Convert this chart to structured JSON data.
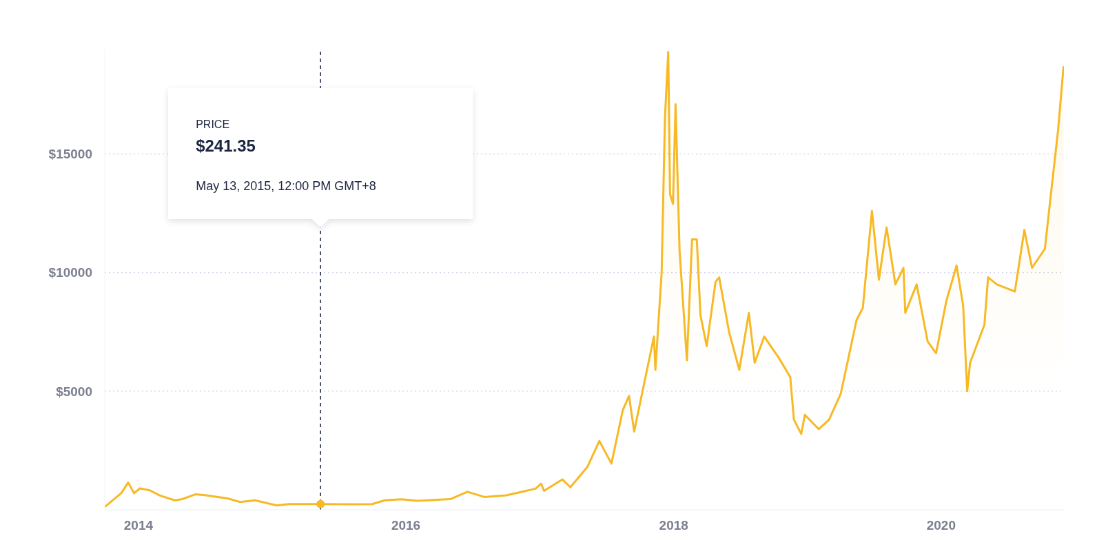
{
  "chart_data": {
    "type": "area",
    "x": [
      "2013-10-01",
      "2013-11-15",
      "2013-12-04",
      "2013-12-20",
      "2014-01-05",
      "2014-02-01",
      "2014-03-01",
      "2014-04-10",
      "2014-05-01",
      "2014-06-05",
      "2014-07-01",
      "2014-09-01",
      "2014-10-05",
      "2014-11-15",
      "2015-01-14",
      "2015-02-15",
      "2015-05-13",
      "2015-08-20",
      "2015-10-01",
      "2015-11-04",
      "2015-12-20",
      "2016-02-01",
      "2016-05-01",
      "2016-06-17",
      "2016-08-02",
      "2016-10-01",
      "2016-12-20",
      "2017-01-04",
      "2017-01-12",
      "2017-03-03",
      "2017-03-25",
      "2017-05-10",
      "2017-06-12",
      "2017-07-15",
      "2017-08-15",
      "2017-09-01",
      "2017-09-15",
      "2017-10-20",
      "2017-11-08",
      "2017-11-12",
      "2017-11-29",
      "2017-12-08",
      "2017-12-17",
      "2017-12-22",
      "2017-12-30",
      "2018-01-06",
      "2018-01-17",
      "2018-02-06",
      "2018-02-20",
      "2018-03-05",
      "2018-03-15",
      "2018-04-01",
      "2018-04-25",
      "2018-05-05",
      "2018-06-01",
      "2018-06-29",
      "2018-07-25",
      "2018-08-10",
      "2018-09-05",
      "2018-10-15",
      "2018-11-15",
      "2018-11-25",
      "2018-12-15",
      "2018-12-25",
      "2019-02-01",
      "2019-03-01",
      "2019-04-02",
      "2019-05-15",
      "2019-06-01",
      "2019-06-26",
      "2019-07-15",
      "2019-08-05",
      "2019-08-29",
      "2019-09-20",
      "2019-09-25",
      "2019-10-26",
      "2019-11-25",
      "2019-12-18",
      "2020-01-15",
      "2020-02-12",
      "2020-03-01",
      "2020-03-12",
      "2020-03-20",
      "2020-04-28",
      "2020-05-08",
      "2020-06-01",
      "2020-07-20",
      "2020-08-15",
      "2020-09-05",
      "2020-10-10",
      "2020-10-25",
      "2020-11-15",
      "2020-11-30"
    ],
    "series": [
      {
        "color": "#f7b924",
        "values": [
          120,
          700,
          1150,
          700,
          900,
          820,
          600,
          400,
          450,
          650,
          620,
          480,
          330,
          400,
          180,
          240,
          240,
          230,
          240,
          400,
          440,
          380,
          450,
          760,
          540,
          610,
          890,
          1100,
          800,
          1280,
          950,
          1800,
          2900,
          1950,
          4200,
          4800,
          3300,
          5900,
          7300,
          5900,
          10000,
          16500,
          19300,
          13300,
          12900,
          17100,
          10900,
          6300,
          11400,
          11400,
          8200,
          6900,
          9600,
          9800,
          7500,
          5900,
          8300,
          6200,
          7300,
          6400,
          5600,
          3800,
          3200,
          4000,
          3400,
          3800,
          4900,
          8000,
          8500,
          12600,
          9700,
          11900,
          9500,
          10200,
          8300,
          9500,
          7100,
          6600,
          8800,
          10300,
          8600,
          5000,
          6200,
          7800,
          9800,
          9500,
          9200,
          11800,
          10200,
          11000,
          13100,
          16000,
          18700
        ]
      }
    ],
    "xlim": [
      "2013-10-01",
      "2020-12-01"
    ],
    "xticks": [
      {
        "value": "2014-01-01",
        "label": "2014"
      },
      {
        "value": "2016-01-01",
        "label": "2016"
      },
      {
        "value": "2018-01-01",
        "label": "2018"
      },
      {
        "value": "2020-01-01",
        "label": "2020"
      }
    ],
    "ylim": [
      0,
      19400
    ],
    "yticks": [
      {
        "value": 5000,
        "label": "$5000"
      },
      {
        "value": 10000,
        "label": "$10000"
      },
      {
        "value": 15000,
        "label": "$15000"
      }
    ],
    "grid": "y",
    "ref_lines": [
      {
        "axis": "x",
        "value": "2015-05-13",
        "color": "#1c2541",
        "line_style": "dashed"
      }
    ],
    "annotations": [
      "PRICE",
      "$241.35",
      "May 13, 2015, 12:00 PM GMT+8"
    ]
  }
}
